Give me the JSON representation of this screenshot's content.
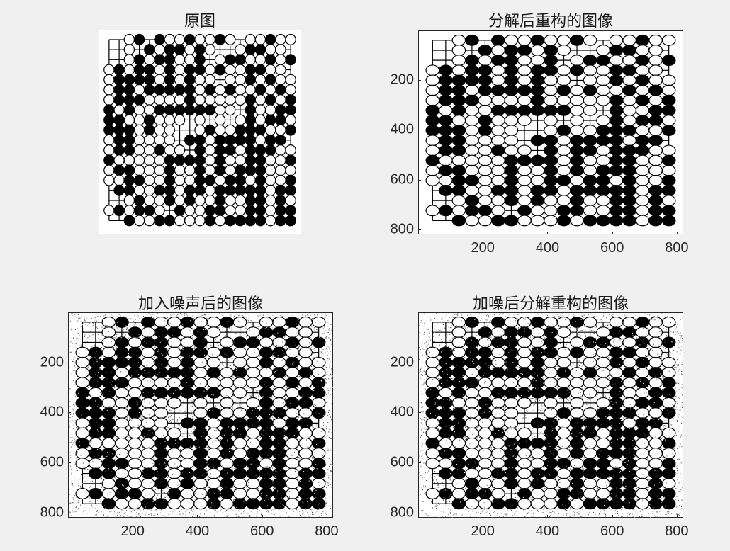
{
  "figure": {
    "background": "#f0f0f0"
  },
  "panels": [
    {
      "id": "p1",
      "title": "原图",
      "has_axes": false,
      "noise": false,
      "yticks": [],
      "xticks": []
    },
    {
      "id": "p2",
      "title": "分解后重构的图像",
      "has_axes": true,
      "noise": false,
      "yticks": [
        "200",
        "400",
        "600",
        "800"
      ],
      "xticks": [
        "200",
        "400",
        "600",
        "800"
      ]
    },
    {
      "id": "p3",
      "title": "加入噪声后的图像",
      "has_axes": true,
      "noise": true,
      "yticks": [
        "200",
        "400",
        "600",
        "800"
      ],
      "xticks": [
        "200",
        "400",
        "600",
        "800"
      ]
    },
    {
      "id": "p4",
      "title": "加噪后分解重构的图像",
      "has_axes": true,
      "noise": true,
      "yticks": [
        "200",
        "400",
        "600",
        "800"
      ],
      "xticks": [
        "200",
        "400",
        "600",
        "800"
      ]
    }
  ],
  "go_board": {
    "grid_lines": 19,
    "stone_colors": {
      "black": "#000000",
      "white": "#ffffff"
    },
    "board": [
      "..WB.BWWBWWBW.WWBWW",
      "..W.BWBBWBW..WBBWW.",
      "..WBWBBWWB.WBBWWBWB",
      "WBWBBWBWBBWBWWBBWW.",
      "WBBBBWBWBWW.WWBWBWW",
      "WBBWBBBBBWBWBWWBWBW",
      "WBBBWWWWBWWWWWBWBWB",
      "BWBWWBBBBBBWW.BWWBB",
      "BBWWBWWW.W.W.WBWBBW",
      "BBBWBWW..WBWWBBBWWB",
      "WBBWWWW.BBWBBBBWBB.",
      "WBBWWBWW.BWBBWBBBWW",
      "BWWWWWBBBBWBWWBBWWB",
      "WBBWWWBWWBWBWBBBWWW",
      "WWBBWWBWWBBWBBWBWWB",
      ".BBWWBBWBBWBBBBBWBB",
      "..WBWWBWBWWBWWBBWBW",
      "WBWBBW.BWWBBWWBBWBB",
      "..BWWBBWWWBWBBBBWBB"
    ]
  }
}
